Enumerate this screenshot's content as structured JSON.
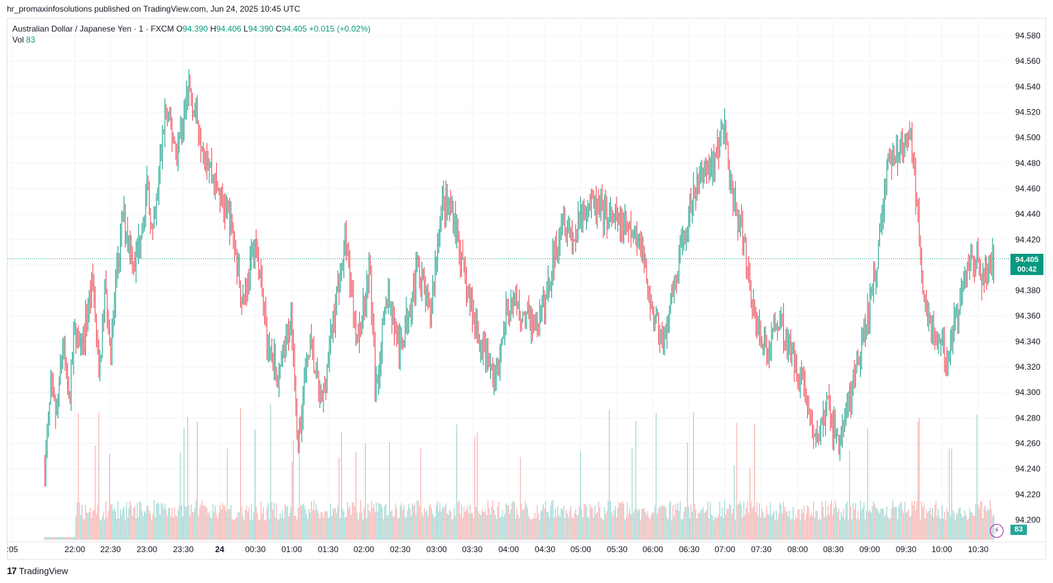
{
  "header": {
    "publisher_line": "hr_promaxinfosolutions published on TradingView.com, Jun 24, 2025 10:45 UTC"
  },
  "legend": {
    "symbol": "Australian Dollar / Japanese Yen · 1 · FXCM",
    "o_label": "O",
    "o_value": "94.390",
    "h_label": "H",
    "h_value": "94.406",
    "l_label": "L",
    "l_value": "94.390",
    "c_label": "C",
    "c_value": "94.405",
    "change": "+0.015 (+0.02%)",
    "vol_label": "Vol",
    "vol_value": "83"
  },
  "price_tag": {
    "price": "94.405",
    "countdown": "00:42"
  },
  "volume_tag": "83",
  "footer": {
    "brand": "TradingView"
  },
  "colors": {
    "up": "#089981",
    "down": "#f23645",
    "up_vol": "#26a69a",
    "down_vol": "#ef5350",
    "grid": "#f0f3fa"
  },
  "chart_data": {
    "type": "candlestick",
    "interval": "1 minute",
    "y_ticks": [
      "94.580",
      "94.560",
      "94.540",
      "94.520",
      "94.500",
      "94.480",
      "94.460",
      "94.440",
      "94.420",
      "94.400",
      "94.380",
      "94.360",
      "94.340",
      "94.320",
      "94.300",
      "94.280",
      "94.260",
      "94.240",
      "94.220",
      "94.200"
    ],
    "x_ticks": [
      ":05",
      "22:00",
      "22:30",
      "23:00",
      "23:30",
      "24",
      "00:30",
      "01:00",
      "01:30",
      "02:00",
      "02:30",
      "03:00",
      "03:30",
      "04:00",
      "04:30",
      "05:00",
      "05:30",
      "06:00",
      "06:30",
      "07:00",
      "07:30",
      "08:00",
      "08:30",
      "09:00",
      "09:30",
      "10:00",
      "10:30"
    ],
    "ylim": [
      94.19,
      94.59
    ],
    "last_price": 94.405,
    "close_path": [
      {
        "t": "21:35",
        "p": 94.24
      },
      {
        "t": "21:40",
        "p": 94.3
      },
      {
        "t": "21:45",
        "p": 94.28
      },
      {
        "t": "21:50",
        "p": 94.34
      },
      {
        "t": "21:55",
        "p": 94.29
      },
      {
        "t": "22:00",
        "p": 94.35
      },
      {
        "t": "22:05",
        "p": 94.33
      },
      {
        "t": "22:10",
        "p": 94.36
      },
      {
        "t": "22:15",
        "p": 94.39
      },
      {
        "t": "22:20",
        "p": 94.31
      },
      {
        "t": "22:25",
        "p": 94.38
      },
      {
        "t": "22:30",
        "p": 94.34
      },
      {
        "t": "22:40",
        "p": 94.44
      },
      {
        "t": "22:50",
        "p": 94.4
      },
      {
        "t": "23:00",
        "p": 94.46
      },
      {
        "t": "23:05",
        "p": 94.42
      },
      {
        "t": "23:15",
        "p": 94.52
      },
      {
        "t": "23:25",
        "p": 94.49
      },
      {
        "t": "23:35",
        "p": 94.54
      },
      {
        "t": "23:45",
        "p": 94.5
      },
      {
        "t": "23:55",
        "p": 94.47
      },
      {
        "t": "00:10",
        "p": 94.43
      },
      {
        "t": "00:20",
        "p": 94.37
      },
      {
        "t": "00:30",
        "p": 94.42
      },
      {
        "t": "00:40",
        "p": 94.34
      },
      {
        "t": "00:50",
        "p": 94.31
      },
      {
        "t": "01:00",
        "p": 94.36
      },
      {
        "t": "01:05",
        "p": 94.26
      },
      {
        "t": "01:15",
        "p": 94.34
      },
      {
        "t": "01:25",
        "p": 94.29
      },
      {
        "t": "01:35",
        "p": 94.36
      },
      {
        "t": "01:45",
        "p": 94.42
      },
      {
        "t": "01:55",
        "p": 94.34
      },
      {
        "t": "02:05",
        "p": 94.4
      },
      {
        "t": "02:10",
        "p": 94.3
      },
      {
        "t": "02:20",
        "p": 94.38
      },
      {
        "t": "02:30",
        "p": 94.33
      },
      {
        "t": "02:45",
        "p": 94.4
      },
      {
        "t": "02:55",
        "p": 94.36
      },
      {
        "t": "03:05",
        "p": 94.45
      },
      {
        "t": "03:15",
        "p": 94.44
      },
      {
        "t": "03:25",
        "p": 94.38
      },
      {
        "t": "03:40",
        "p": 94.33
      },
      {
        "t": "03:50",
        "p": 94.31
      },
      {
        "t": "04:00",
        "p": 94.37
      },
      {
        "t": "04:15",
        "p": 94.36
      },
      {
        "t": "04:25",
        "p": 94.35
      },
      {
        "t": "04:35",
        "p": 94.39
      },
      {
        "t": "04:45",
        "p": 94.44
      },
      {
        "t": "04:55",
        "p": 94.42
      },
      {
        "t": "05:05",
        "p": 94.45
      },
      {
        "t": "05:20",
        "p": 94.44
      },
      {
        "t": "05:35",
        "p": 94.43
      },
      {
        "t": "05:50",
        "p": 94.42
      },
      {
        "t": "06:00",
        "p": 94.36
      },
      {
        "t": "06:10",
        "p": 94.34
      },
      {
        "t": "06:20",
        "p": 94.39
      },
      {
        "t": "06:30",
        "p": 94.44
      },
      {
        "t": "06:40",
        "p": 94.47
      },
      {
        "t": "06:50",
        "p": 94.48
      },
      {
        "t": "07:00",
        "p": 94.51
      },
      {
        "t": "07:05",
        "p": 94.46
      },
      {
        "t": "07:15",
        "p": 94.42
      },
      {
        "t": "07:25",
        "p": 94.36
      },
      {
        "t": "07:35",
        "p": 94.33
      },
      {
        "t": "07:45",
        "p": 94.36
      },
      {
        "t": "07:55",
        "p": 94.33
      },
      {
        "t": "08:05",
        "p": 94.31
      },
      {
        "t": "08:15",
        "p": 94.26
      },
      {
        "t": "08:25",
        "p": 94.29
      },
      {
        "t": "08:35",
        "p": 94.26
      },
      {
        "t": "08:45",
        "p": 94.3
      },
      {
        "t": "08:55",
        "p": 94.34
      },
      {
        "t": "09:05",
        "p": 94.39
      },
      {
        "t": "09:15",
        "p": 94.48
      },
      {
        "t": "09:25",
        "p": 94.49
      },
      {
        "t": "09:35",
        "p": 94.5
      },
      {
        "t": "09:45",
        "p": 94.38
      },
      {
        "t": "09:55",
        "p": 94.34
      },
      {
        "t": "10:05",
        "p": 94.33
      },
      {
        "t": "10:15",
        "p": 94.37
      },
      {
        "t": "10:25",
        "p": 94.41
      },
      {
        "t": "10:35",
        "p": 94.39
      },
      {
        "t": "10:44",
        "p": 94.405
      }
    ]
  }
}
